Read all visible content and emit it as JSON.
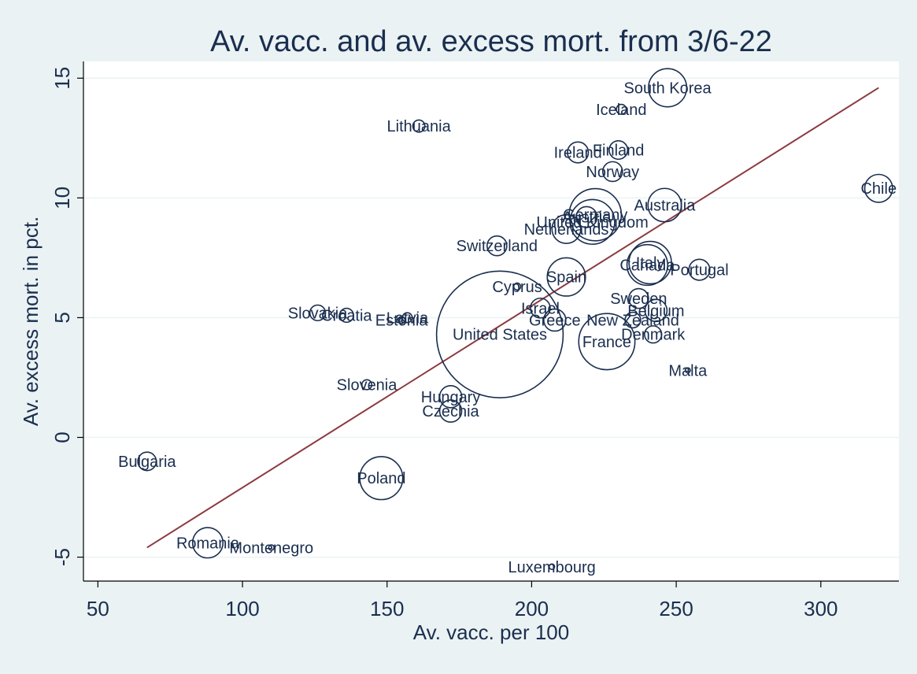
{
  "chart_data": {
    "type": "scatter",
    "title": "Av. vacc. and av. excess mort. from 3/6-22",
    "xlabel": "Av. vacc. per 100",
    "ylabel": "Av. excess mort. in pct.",
    "xlim": [
      45,
      327
    ],
    "ylim": [
      -6,
      15.7
    ],
    "xticks": [
      50,
      100,
      150,
      200,
      250,
      300
    ],
    "yticks": [
      -5,
      0,
      5,
      10,
      15
    ],
    "grid": true,
    "legend": "none",
    "fit_line": {
      "x": [
        67,
        320
      ],
      "y": [
        -4.6,
        14.6
      ]
    },
    "points": [
      {
        "label": "South Korea",
        "x": 247,
        "y": 14.6,
        "size": 3.0
      },
      {
        "label": "Iceland",
        "x": 231,
        "y": 13.7,
        "size": 0.2
      },
      {
        "label": "Lithuania",
        "x": 161,
        "y": 13.0,
        "size": 0.3
      },
      {
        "label": "Ireland",
        "x": 216,
        "y": 11.9,
        "size": 0.9
      },
      {
        "label": "Finland",
        "x": 230,
        "y": 12.0,
        "size": 0.7
      },
      {
        "label": "Norway",
        "x": 228,
        "y": 11.1,
        "size": 0.8
      },
      {
        "label": "Chile",
        "x": 320,
        "y": 10.4,
        "size": 1.6
      },
      {
        "label": "Australia",
        "x": 246,
        "y": 9.7,
        "size": 2.3
      },
      {
        "label": "Austria",
        "x": 219,
        "y": 9.2,
        "size": 0.9
      },
      {
        "label": "Germany",
        "x": 222,
        "y": 9.3,
        "size": 5.6
      },
      {
        "label": "United Kingdom",
        "x": 221,
        "y": 9.0,
        "size": 4.1
      },
      {
        "label": "Netherlands",
        "x": 212,
        "y": 8.7,
        "size": 1.7
      },
      {
        "label": "Switzerland",
        "x": 188,
        "y": 8.0,
        "size": 0.8
      },
      {
        "label": "Canada",
        "x": 240,
        "y": 7.2,
        "size": 3.4
      },
      {
        "label": "Italy",
        "x": 241,
        "y": 7.3,
        "size": 3.7
      },
      {
        "label": "Portugal",
        "x": 258,
        "y": 7.0,
        "size": 0.9
      },
      {
        "label": "Spain",
        "x": 212,
        "y": 6.7,
        "size": 3.0
      },
      {
        "label": "Cyprus",
        "x": 195,
        "y": 6.3,
        "size": 0.1
      },
      {
        "label": "Sweden",
        "x": 237,
        "y": 5.8,
        "size": 0.8
      },
      {
        "label": "Israel",
        "x": 203,
        "y": 5.4,
        "size": 0.8
      },
      {
        "label": "Belgium",
        "x": 243,
        "y": 5.3,
        "size": 1.0
      },
      {
        "label": "Slovakia",
        "x": 126,
        "y": 5.2,
        "size": 0.5
      },
      {
        "label": "Croatia",
        "x": 136,
        "y": 5.1,
        "size": 0.4
      },
      {
        "label": "Latvia",
        "x": 157,
        "y": 5.0,
        "size": 0.2
      },
      {
        "label": "Estonia",
        "x": 155,
        "y": 4.9,
        "size": 0.1
      },
      {
        "label": "Greece",
        "x": 208,
        "y": 4.9,
        "size": 1.0
      },
      {
        "label": "New Zealand",
        "x": 235,
        "y": 4.9,
        "size": 0.5
      },
      {
        "label": "United States",
        "x": 189,
        "y": 4.3,
        "size": 33.0
      },
      {
        "label": "Denmark",
        "x": 242,
        "y": 4.3,
        "size": 0.6
      },
      {
        "label": "France",
        "x": 226,
        "y": 4.0,
        "size": 6.5
      },
      {
        "label": "Malta",
        "x": 254,
        "y": 2.8,
        "size": 0.05
      },
      {
        "label": "Slovenia",
        "x": 143,
        "y": 2.2,
        "size": 0.2
      },
      {
        "label": "Hungary",
        "x": 172,
        "y": 1.7,
        "size": 1.0
      },
      {
        "label": "Czechia",
        "x": 172,
        "y": 1.1,
        "size": 1.0
      },
      {
        "label": "Bulgaria",
        "x": 67,
        "y": -1.0,
        "size": 0.7
      },
      {
        "label": "Poland",
        "x": 148,
        "y": -1.7,
        "size": 3.8
      },
      {
        "label": "Romania",
        "x": 88,
        "y": -4.4,
        "size": 1.9
      },
      {
        "label": "Montenegro",
        "x": 110,
        "y": -4.6,
        "size": 0.06
      },
      {
        "label": "Luxembourg",
        "x": 207,
        "y": -5.4,
        "size": 0.06
      }
    ]
  }
}
